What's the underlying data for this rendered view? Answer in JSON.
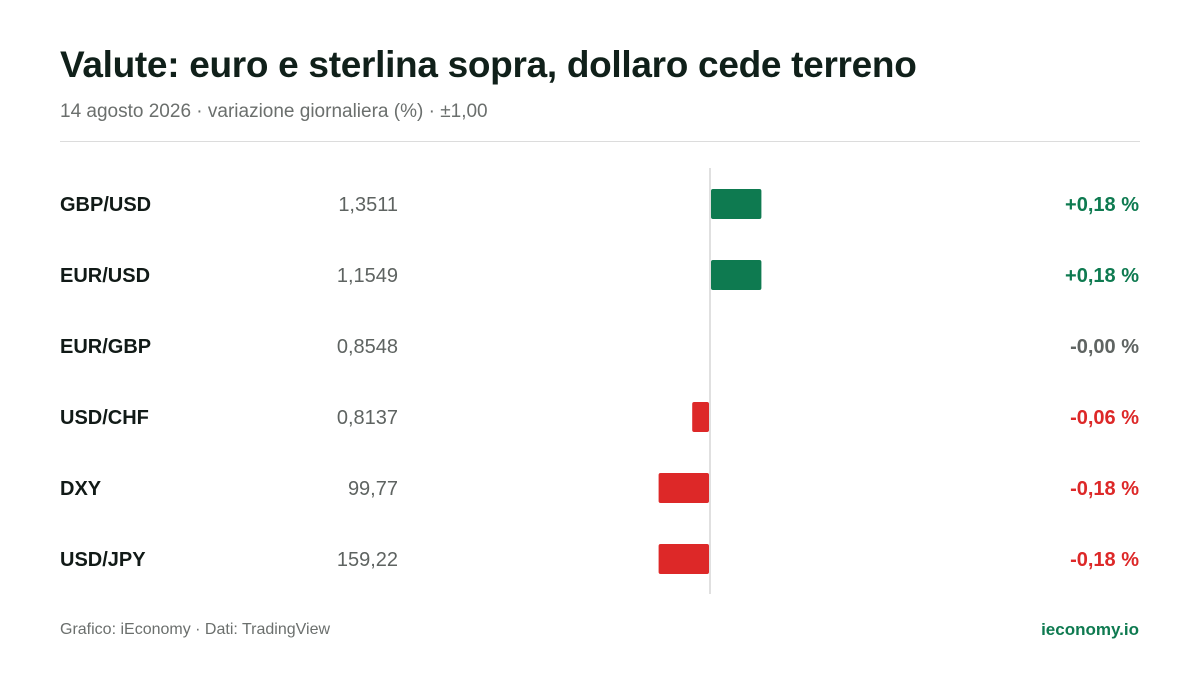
{
  "header": {
    "title": "Valute: euro e sterlina sopra, dollaro cede terreno",
    "subtitle": "14 agosto 2026 · variazione giornaliera (%) · ±1,00"
  },
  "footer": {
    "source": "Grafico: iEconomy · Dati: TradingView",
    "brand": "ieconomy.io"
  },
  "colors": {
    "positive": "#0e7a50",
    "negative": "#dd2828",
    "neutral": "#5f6462",
    "zero_line": "#d6d6d6"
  },
  "chart_data": {
    "type": "bar",
    "orientation": "horizontal",
    "categories": [
      "GBP/USD",
      "EUR/USD",
      "EUR/GBP",
      "USD/CHF",
      "DXY",
      "USD/JPY"
    ],
    "prices": [
      "1,3511",
      "1,1549",
      "0,8548",
      "0,8137",
      "99,77",
      "159,22"
    ],
    "values": [
      0.18,
      0.18,
      -0.0,
      -0.06,
      -0.18,
      -0.18
    ],
    "value_labels": [
      "+0,18 %",
      "+0,18 %",
      "-0,00 %",
      "-0,06 %",
      "-0,18 %",
      "-0,18 %"
    ],
    "xlim": [
      -1.0,
      1.0
    ],
    "grid": false,
    "legend": "none"
  }
}
